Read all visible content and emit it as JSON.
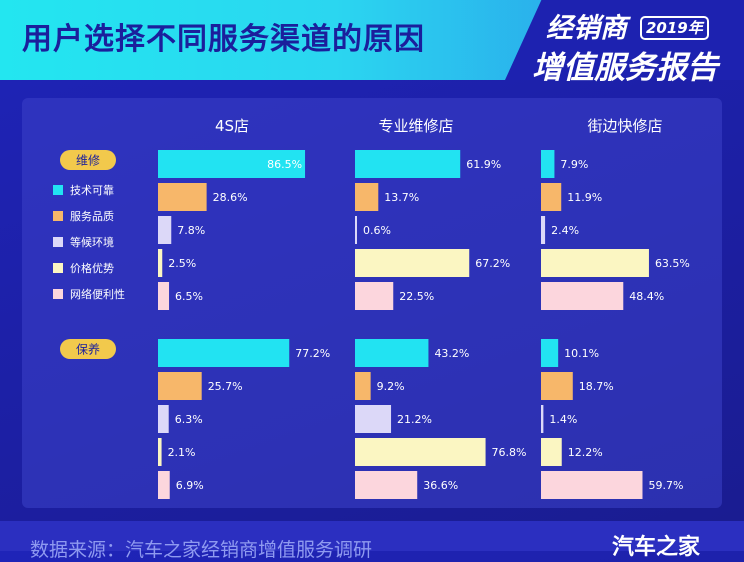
{
  "header": {
    "title": "用户选择不同服务渠道的原因",
    "brand_line1": "经销商",
    "brand_year": "2019年",
    "brand_line2": "增值服务报告"
  },
  "footer": {
    "source": "数据来源：汽车之家经销商增值服务调研",
    "logo": "汽车之家"
  },
  "colors": {
    "header_bg": "#23e6f0",
    "background": "#1f24b8",
    "pill": "#f2c94c"
  },
  "chart_data": {
    "type": "bar",
    "orientation": "horizontal",
    "title": "用户选择不同服务渠道的原因",
    "panels": [
      "4S店",
      "专业维修店",
      "街边快修店"
    ],
    "groups": [
      "维修",
      "保养"
    ],
    "series": [
      {
        "name": "技术可靠",
        "color": "#22e3f2",
        "values": {
          "维修": [
            86.5,
            61.9,
            7.9
          ],
          "保养": [
            77.2,
            43.2,
            10.1
          ]
        }
      },
      {
        "name": "服务品质",
        "color": "#f7b76a",
        "values": {
          "维修": [
            28.6,
            13.7,
            11.9
          ],
          "保养": [
            25.7,
            9.2,
            18.7
          ]
        }
      },
      {
        "name": "等候环境",
        "color": "#dcd8f8",
        "values": {
          "维修": [
            7.8,
            0.6,
            2.4
          ],
          "保养": [
            6.3,
            21.2,
            1.4
          ]
        }
      },
      {
        "name": "价格优势",
        "color": "#fbf6c2",
        "values": {
          "维修": [
            2.5,
            67.2,
            63.5
          ],
          "保养": [
            2.1,
            76.8,
            12.2
          ]
        }
      },
      {
        "name": "网络便利性",
        "color": "#fcd6dd",
        "values": {
          "维修": [
            6.5,
            22.5,
            48.4
          ],
          "保养": [
            6.9,
            36.6,
            59.7
          ]
        }
      }
    ],
    "value_suffix": "%",
    "xlim": [
      0,
      100
    ],
    "legend_position": "left",
    "grid": false
  }
}
